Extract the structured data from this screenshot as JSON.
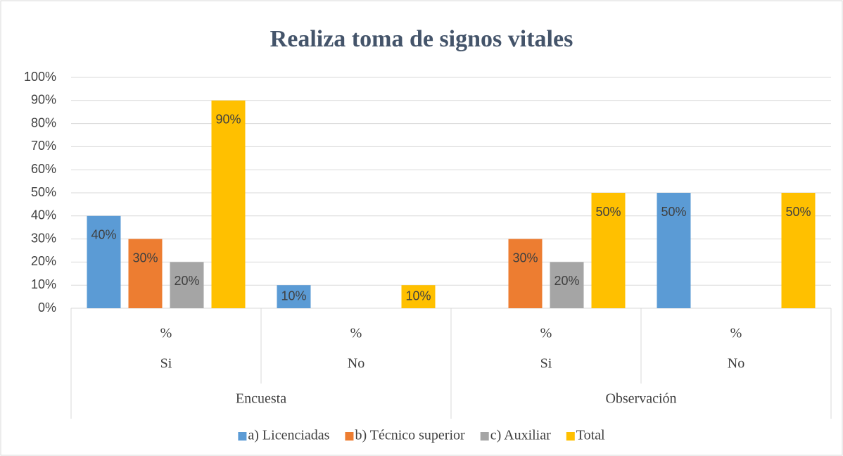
{
  "chart_data": {
    "type": "bar",
    "title": "Realiza toma de signos vitales",
    "categories": [
      "%",
      "%",
      "%",
      "%"
    ],
    "subcategories": [
      "Si",
      "No",
      "Si",
      "No"
    ],
    "groups": [
      "Encuesta",
      "Observación"
    ],
    "series": [
      {
        "name": "a) Licenciadas",
        "color": "#5b9bd5",
        "values": [
          40,
          10,
          null,
          50
        ],
        "value_labels": [
          "40%",
          "10%",
          null,
          "50%"
        ]
      },
      {
        "name": "b) Técnico superior",
        "color": "#ed7d31",
        "values": [
          30,
          null,
          30,
          null
        ],
        "value_labels": [
          "30%",
          null,
          "30%",
          null
        ]
      },
      {
        "name": "c) Auxiliar",
        "color": "#a5a5a5",
        "values": [
          20,
          null,
          20,
          null
        ],
        "value_labels": [
          "20%",
          null,
          "20%",
          null
        ]
      },
      {
        "name": "Total",
        "color": "#ffc000",
        "values": [
          90,
          10,
          50,
          50
        ],
        "value_labels": [
          "90%",
          "10%",
          "50%",
          "50%"
        ]
      }
    ],
    "ylim": [
      0,
      100
    ],
    "yticks": [
      {
        "value": 0,
        "label": "0%"
      },
      {
        "value": 10,
        "label": "10%"
      },
      {
        "value": 20,
        "label": "20%"
      },
      {
        "value": 30,
        "label": "30%"
      },
      {
        "value": 40,
        "label": "40%"
      },
      {
        "value": 50,
        "label": "50%"
      },
      {
        "value": 60,
        "label": "60%"
      },
      {
        "value": 70,
        "label": "70%"
      },
      {
        "value": 80,
        "label": "80%"
      },
      {
        "value": 90,
        "label": "90%"
      },
      {
        "value": 100,
        "label": "100%"
      }
    ],
    "grid": true,
    "legend": "bottom"
  }
}
